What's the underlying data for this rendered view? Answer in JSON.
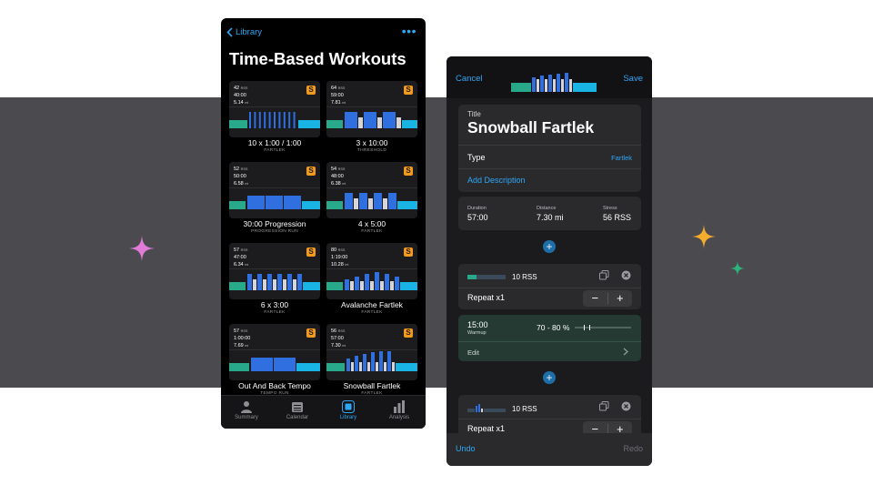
{
  "colors": {
    "accent": "#2ea7f5",
    "badge": "#f39a1c",
    "teal": "#27a98a",
    "zone_blue": "#2f6fe0",
    "zone_cyan": "#19b4e4",
    "zone_light": "#d6d6da"
  },
  "library": {
    "back_label": "Library",
    "more_icon": "ellipsis-icon",
    "title": "Time-Based Workouts",
    "cards": [
      {
        "rss": "42",
        "rss_unit": "RSS",
        "time": "40:00",
        "dist": "5.14",
        "dist_unit": "mi",
        "name": "10 x 1:00 / 1:00",
        "type": "FARTLEK"
      },
      {
        "rss": "64",
        "rss_unit": "RSS",
        "time": "59:00",
        "dist": "7.81",
        "dist_unit": "mi",
        "name": "3 x 10:00",
        "type": "THRESHOLD"
      },
      {
        "rss": "52",
        "rss_unit": "RSS",
        "time": "50:00",
        "dist": "6.58",
        "dist_unit": "mi",
        "name": "30:00 Progression",
        "type": "PROGRESSION RUN"
      },
      {
        "rss": "54",
        "rss_unit": "RSS",
        "time": "48:00",
        "dist": "6.38",
        "dist_unit": "mi",
        "name": "4 x 5:00",
        "type": "FARTLEK"
      },
      {
        "rss": "57",
        "rss_unit": "RSS",
        "time": "47:00",
        "dist": "6.34",
        "dist_unit": "mi",
        "name": "6 x 3:00",
        "type": "FARTLEK"
      },
      {
        "rss": "80",
        "rss_unit": "RSS",
        "time": "1:19:00",
        "dist": "10.28",
        "dist_unit": "mi",
        "name": "Avalanche Fartlek",
        "type": "FARTLEK"
      },
      {
        "rss": "57",
        "rss_unit": "RSS",
        "time": "1:00:00",
        "dist": "7.69",
        "dist_unit": "mi",
        "name": "Out And Back Tempo",
        "type": "TEMPO RUN"
      },
      {
        "rss": "56",
        "rss_unit": "RSS",
        "time": "57:00",
        "dist": "7.30",
        "dist_unit": "mi",
        "name": "Snowball Fartlek",
        "type": "FARTLEK"
      }
    ],
    "badge_letter": "S",
    "tabs": [
      {
        "label": "Summary",
        "icon": "person-icon"
      },
      {
        "label": "Calendar",
        "icon": "calendar-icon"
      },
      {
        "label": "Library",
        "icon": "library-icon"
      },
      {
        "label": "Analysis",
        "icon": "bar-chart-icon"
      }
    ]
  },
  "editor": {
    "cancel_label": "Cancel",
    "save_label": "Save",
    "title_label": "Title",
    "title_value": "Snowball Fartlek",
    "type_label": "Type",
    "type_value": "Fartlek",
    "add_description": "Add Description",
    "duration_label": "Duration",
    "duration_value": "57:00",
    "distance_label": "Distance",
    "distance_value": "7.30 mi",
    "stress_label": "Stress",
    "stress_value": "56 RSS",
    "block1": {
      "rss": "10 RSS",
      "repeat": "Repeat x1"
    },
    "step1": {
      "duration": "15:00",
      "name": "Warmup",
      "range": "70 - 80 %",
      "edit": "Edit"
    },
    "block2": {
      "rss": "10 RSS",
      "repeat": "Repeat x1"
    },
    "minus": "−",
    "plus": "+",
    "undo": "Undo",
    "redo": "Redo"
  }
}
